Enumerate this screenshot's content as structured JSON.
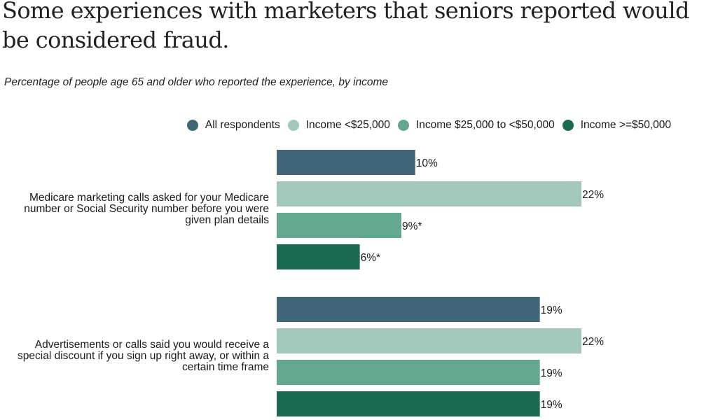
{
  "title": "Some experiences with marketers that seniors reported would be considered fraud.",
  "subtitle": "Percentage of people age 65 and older who reported the experience, by income",
  "chart_data": {
    "type": "bar",
    "orientation": "horizontal",
    "title": "Some experiences with marketers that seniors reported would be considered fraud.",
    "subtitle": "Percentage of people age 65 and older who reported the experience, by income",
    "categories": [
      "Medicare marketing calls asked for your Medicare number or Social Security number before you were given plan details",
      "Advertisements or calls said you would receive a special discount if you sign up right away, or within a certain time frame"
    ],
    "series": [
      {
        "name": "All respondents",
        "color": "#406677",
        "values": [
          10,
          19
        ],
        "labels": [
          "10%",
          "19%"
        ]
      },
      {
        "name": "Income <$25,000",
        "color": "#a3c9bc",
        "values": [
          22,
          22
        ],
        "labels": [
          "22%",
          "22%"
        ]
      },
      {
        "name": "Income $25,000 to <$50,000",
        "color": "#65a68f",
        "values": [
          9,
          19
        ],
        "labels": [
          "9%*",
          "19%"
        ]
      },
      {
        "name": "Income >=$50,000",
        "color": "#1d6a53",
        "values": [
          6,
          19
        ],
        "labels": [
          "6%*",
          "19%"
        ]
      }
    ],
    "xlim": [
      0,
      22
    ],
    "grid": false,
    "legend_position": "top"
  }
}
